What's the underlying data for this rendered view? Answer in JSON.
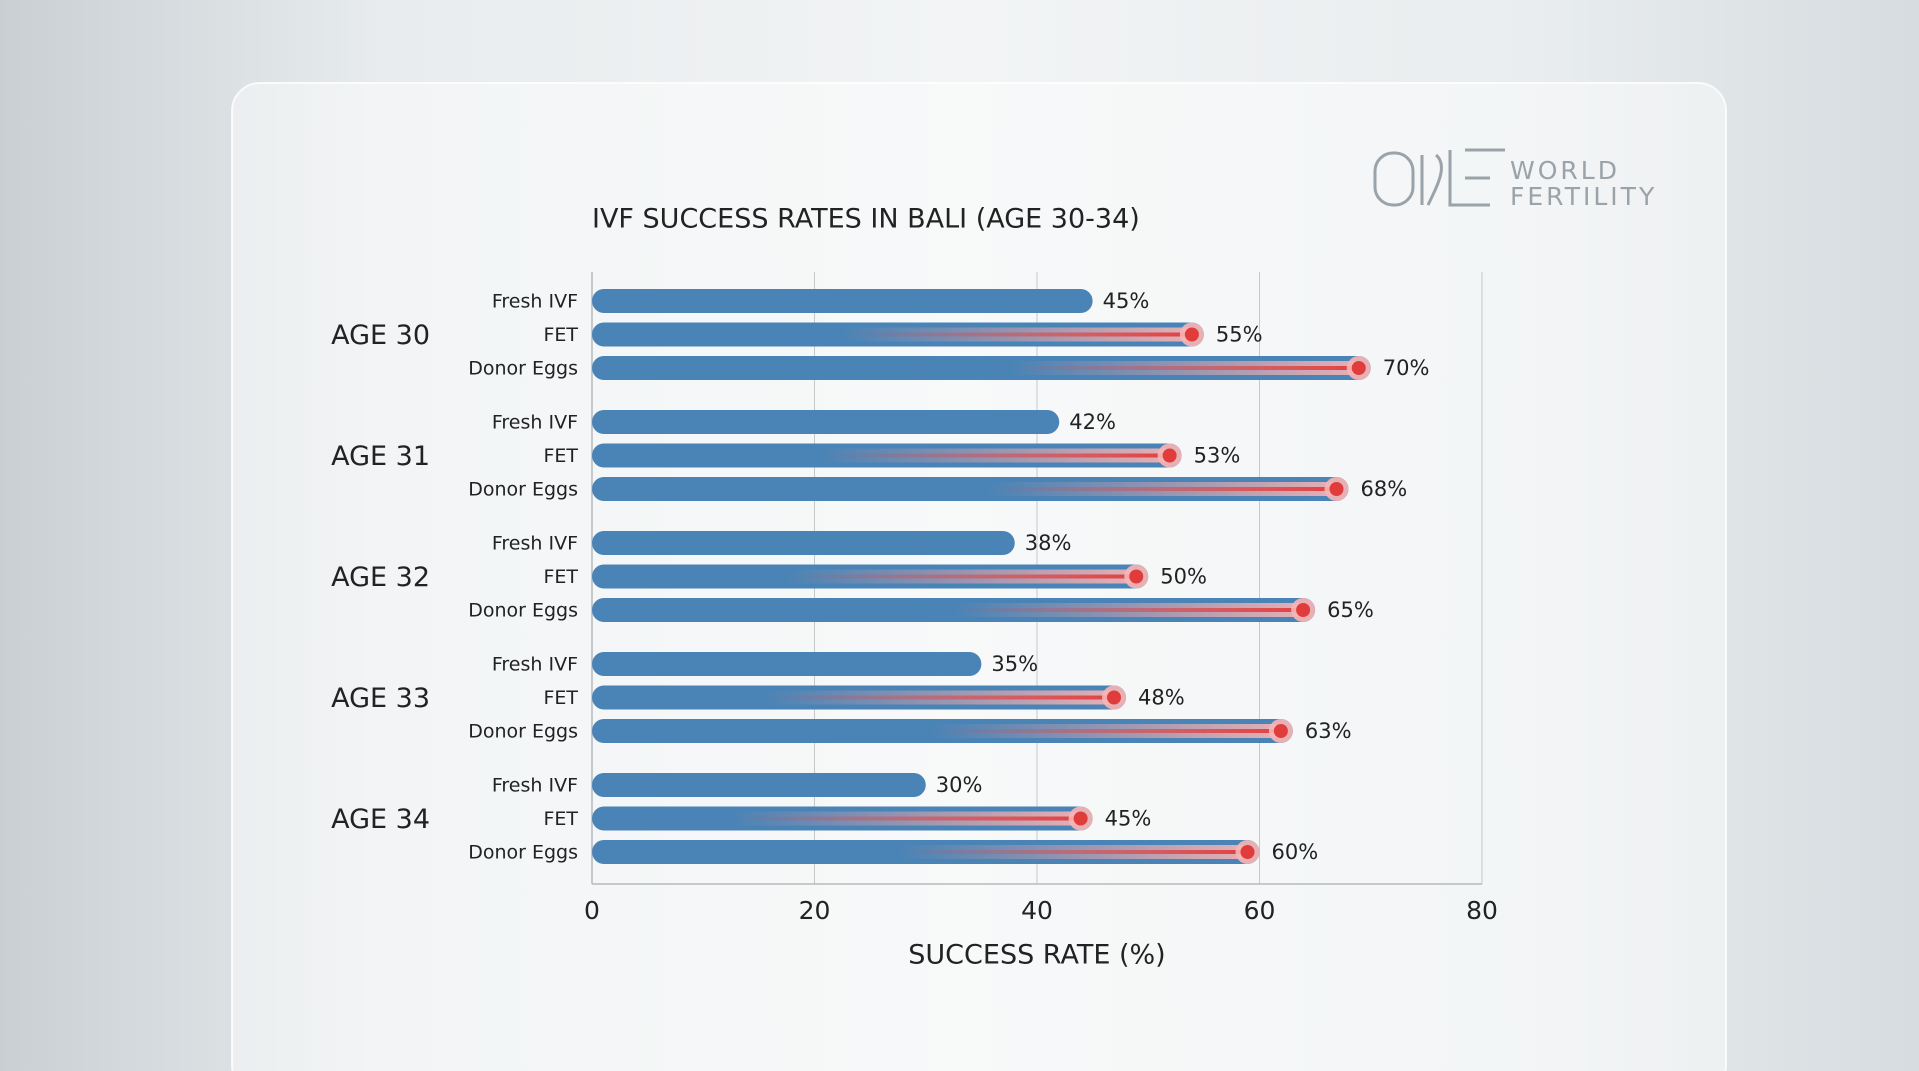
{
  "chart_data": {
    "type": "hbar",
    "title": "IVF SUCCESS RATES IN BALI (AGE 30-34)",
    "xlabel": "SUCCESS RATE (%)",
    "categories": [
      "AGE 30",
      "AGE 31",
      "AGE 32",
      "AGE 33",
      "AGE 34"
    ],
    "series": [
      {
        "name": "Fresh IVF",
        "color": "#4a84b6",
        "values": [
          45,
          42,
          38,
          35,
          30
        ],
        "value_labels": [
          "45%",
          "42%",
          "38%",
          "35%",
          "30%"
        ]
      },
      {
        "name": "FET",
        "color": "#4a84b6",
        "highlight": "#e03c3c",
        "values": [
          55,
          53,
          50,
          48,
          45
        ],
        "value_labels": [
          "55%",
          "53%",
          "50%",
          "48%",
          "45%"
        ]
      },
      {
        "name": "Donor Eggs",
        "color": "#4a84b6",
        "highlight": "#e03c3c",
        "values": [
          70,
          68,
          65,
          63,
          60
        ],
        "value_labels": [
          "70%",
          "68%",
          "65%",
          "63%",
          "60%"
        ]
      }
    ],
    "xlim": [
      0,
      80
    ],
    "xticks": [
      0,
      20,
      40,
      60,
      80
    ],
    "grid": true
  },
  "logo": {
    "line1": "WORLD",
    "line2": "FERTILITY"
  }
}
